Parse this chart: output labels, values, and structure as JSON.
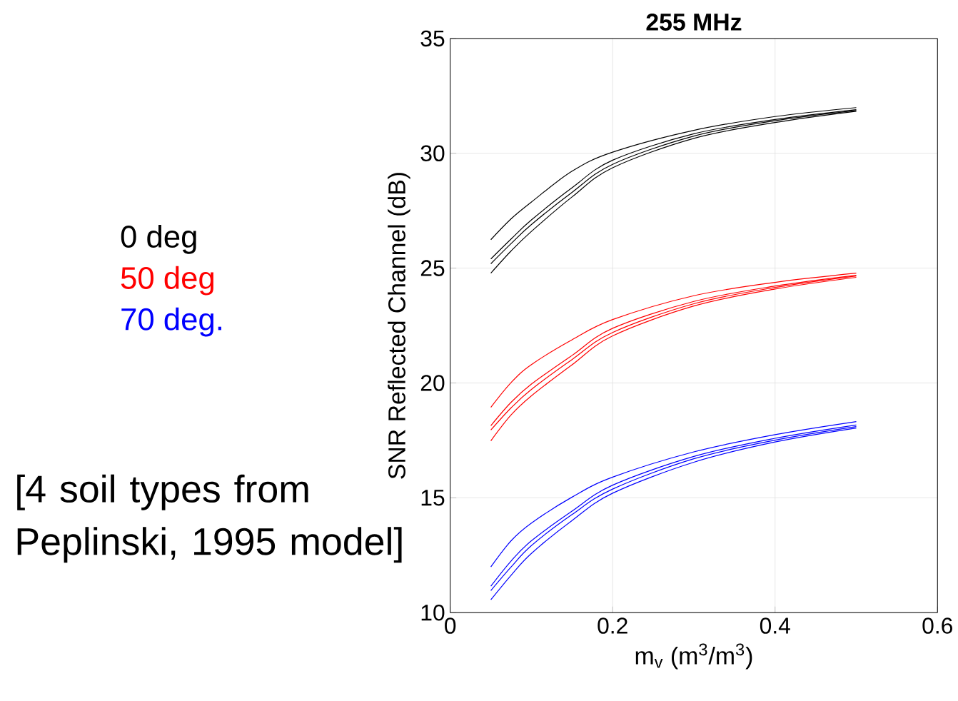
{
  "chart_data": {
    "type": "line",
    "title": "255 MHz",
    "xlabel": "m$_{v}$ (m$^{3}$/m$^{3}$)",
    "ylabel": "SNR Reflected Channel (dB)",
    "x": [
      0.05,
      0.075,
      0.1,
      0.15,
      0.2,
      0.3,
      0.4,
      0.5
    ],
    "series": [
      {
        "name": "0 deg",
        "color": "#000000",
        "values": [
          26.24,
          27.15,
          27.88,
          29.22,
          30.05,
          31.0,
          31.6,
          31.99
        ]
      },
      {
        "color": "#000000",
        "values": [
          25.4,
          26.27,
          27.1,
          28.5,
          29.7,
          30.85,
          31.47,
          31.9
        ]
      },
      {
        "color": "#000000",
        "values": [
          25.19,
          26.07,
          26.9,
          28.3,
          29.52,
          30.75,
          31.42,
          31.86
        ]
      },
      {
        "color": "#000000",
        "values": [
          24.78,
          25.75,
          26.6,
          28.1,
          29.37,
          30.65,
          31.34,
          31.83
        ]
      },
      {
        "name": "50 deg",
        "color": "#ff0000",
        "values": [
          18.94,
          20.02,
          20.8,
          21.88,
          22.76,
          23.8,
          24.38,
          24.78
        ]
      },
      {
        "color": "#ff0000",
        "values": [
          18.14,
          19.16,
          19.95,
          21.2,
          22.38,
          23.55,
          24.22,
          24.69
        ]
      },
      {
        "color": "#ff0000",
        "values": [
          17.95,
          18.92,
          19.72,
          21.02,
          22.2,
          23.45,
          24.16,
          24.66
        ]
      },
      {
        "color": "#ff0000",
        "values": [
          17.48,
          18.61,
          19.44,
          20.79,
          22.05,
          23.35,
          24.09,
          24.6
        ]
      },
      {
        "name": "70 deg.",
        "color": "#0000ff",
        "values": [
          11.99,
          13.13,
          13.9,
          15.03,
          15.9,
          17.0,
          17.75,
          18.32
        ]
      },
      {
        "color": "#0000ff",
        "values": [
          11.15,
          12.25,
          13.13,
          14.42,
          15.55,
          16.8,
          17.59,
          18.17
        ]
      },
      {
        "color": "#0000ff",
        "values": [
          10.96,
          11.99,
          12.92,
          14.27,
          15.38,
          16.7,
          17.51,
          18.1
        ]
      },
      {
        "color": "#0000ff",
        "values": [
          10.56,
          11.63,
          12.58,
          14.01,
          15.2,
          16.55,
          17.43,
          18.04
        ]
      }
    ],
    "xlim": [
      0,
      0.6
    ],
    "ylim": [
      10,
      35
    ],
    "xticks": [
      0,
      0.2,
      0.4,
      0.6
    ],
    "yticks": [
      10,
      15,
      20,
      25,
      30,
      35
    ],
    "grid": true,
    "legend": "left",
    "line_style": "solid",
    "annotations": [
      "[4 soil types from Peplinski, 1995 model]"
    ]
  }
}
